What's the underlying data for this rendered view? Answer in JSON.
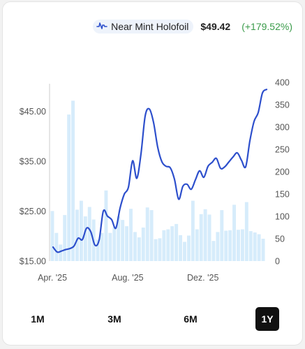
{
  "legend": {
    "icon": "chart-line-icon",
    "name": "Near Mint Holofoil",
    "price": "$49.42",
    "change": "(+179.52%)",
    "change_color": "#3a9b4a"
  },
  "ranges": {
    "items": [
      "1M",
      "3M",
      "6M",
      "1Y"
    ],
    "active": "1Y"
  },
  "chart_data": {
    "type": "line",
    "x_tick_labels": [
      "Apr. '25",
      "Aug. '25",
      "Dez. '25"
    ],
    "y_left": {
      "tick_labels": [
        "$15.00",
        "$25.00",
        "$35.00",
        "$45.00"
      ],
      "range": [
        15,
        50
      ],
      "label": ""
    },
    "y_right": {
      "tick_labels": [
        "0",
        "50",
        "100",
        "150",
        "200",
        "250",
        "300",
        "350",
        "400"
      ],
      "range": [
        0,
        400
      ],
      "label": ""
    },
    "series": [
      {
        "type": "line",
        "axis": "left",
        "color": "#2d4fcc",
        "values": [
          17.8,
          16.8,
          17.0,
          17.3,
          17.5,
          18.0,
          19.6,
          19.3,
          21.6,
          20.9,
          18.2,
          19.2,
          25.0,
          24.0,
          23.3,
          21.6,
          25.6,
          28.4,
          29.8,
          35.1,
          31.6,
          36.5,
          44.1,
          45.5,
          42.8,
          37.8,
          34.9,
          34.0,
          33.7,
          31.4,
          27.4,
          30.0,
          30.4,
          29.4,
          31.3,
          33.1,
          31.8,
          34.0,
          34.8,
          35.6,
          33.6,
          33.9,
          34.9,
          35.9,
          36.7,
          35.2,
          33.9,
          39.1,
          43.0,
          44.8,
          48.7,
          49.42
        ]
      },
      {
        "type": "bar",
        "axis": "right",
        "color": "#d6ecfb",
        "values": [
          112,
          63,
          37,
          103,
          328,
          359,
          115,
          135,
          100,
          121,
          93,
          48,
          63,
          158,
          63,
          76,
          100,
          92,
          78,
          117,
          65,
          53,
          75,
          120,
          114,
          49,
          51,
          69,
          71,
          78,
          83,
          58,
          43,
          57,
          135,
          71,
          105,
          116,
          104,
          45,
          65,
          114,
          68,
          69,
          126,
          70,
          71,
          132,
          67,
          64,
          60,
          50
        ]
      }
    ]
  }
}
